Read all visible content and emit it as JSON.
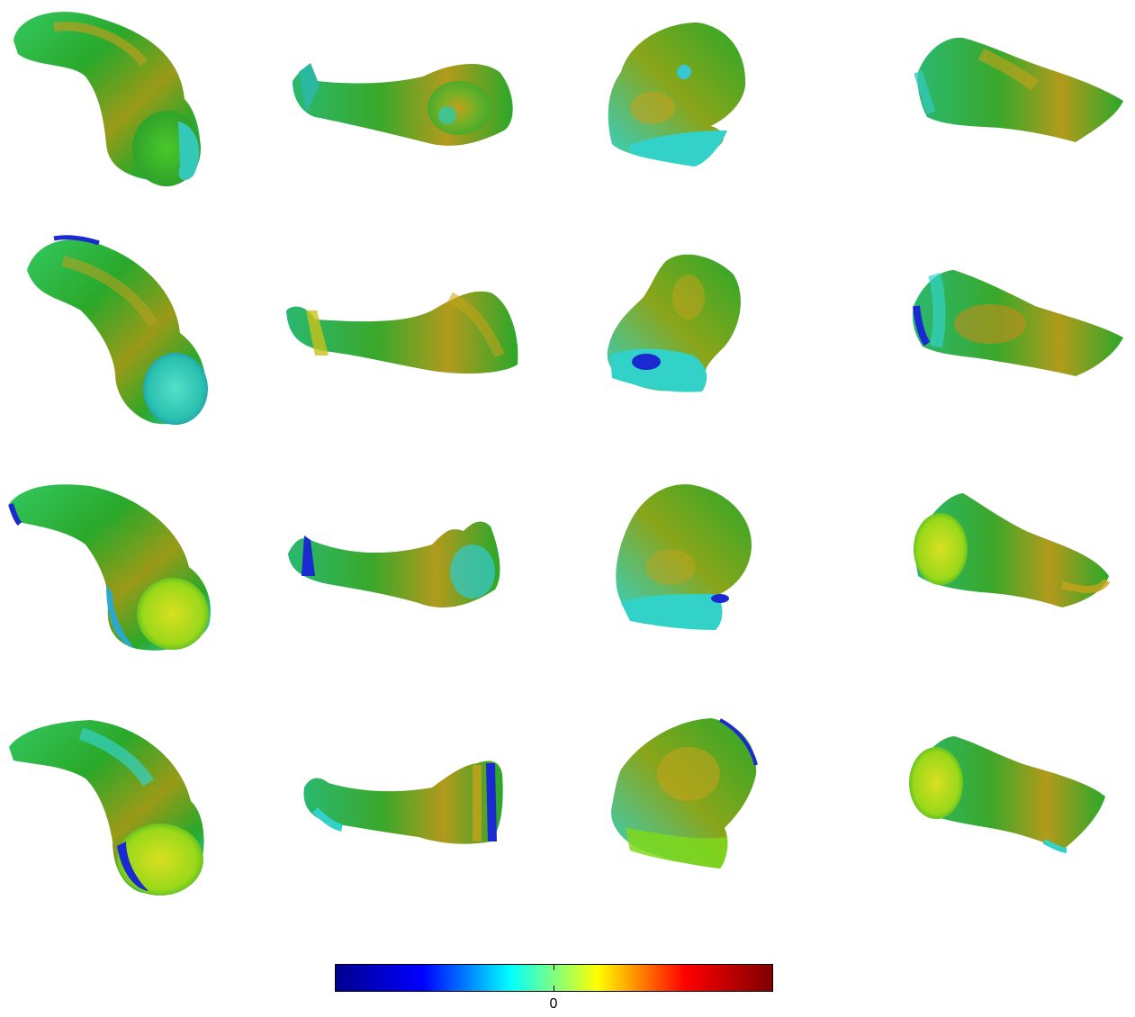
{
  "colorbar": {
    "center_label": "0",
    "colors": [
      "#00008f",
      "#0000ff",
      "#00ffff",
      "#ffff00",
      "#ff0000",
      "#800000"
    ]
  },
  "palette": {
    "green": "#2aa82a",
    "lime": "#7fd81a",
    "olive": "#9a9a18",
    "ochre": "#c8a21a",
    "cyan": "#33d2c8",
    "blue": "#1a2ad0"
  },
  "grid": {
    "rows": 4,
    "cols": 4
  }
}
